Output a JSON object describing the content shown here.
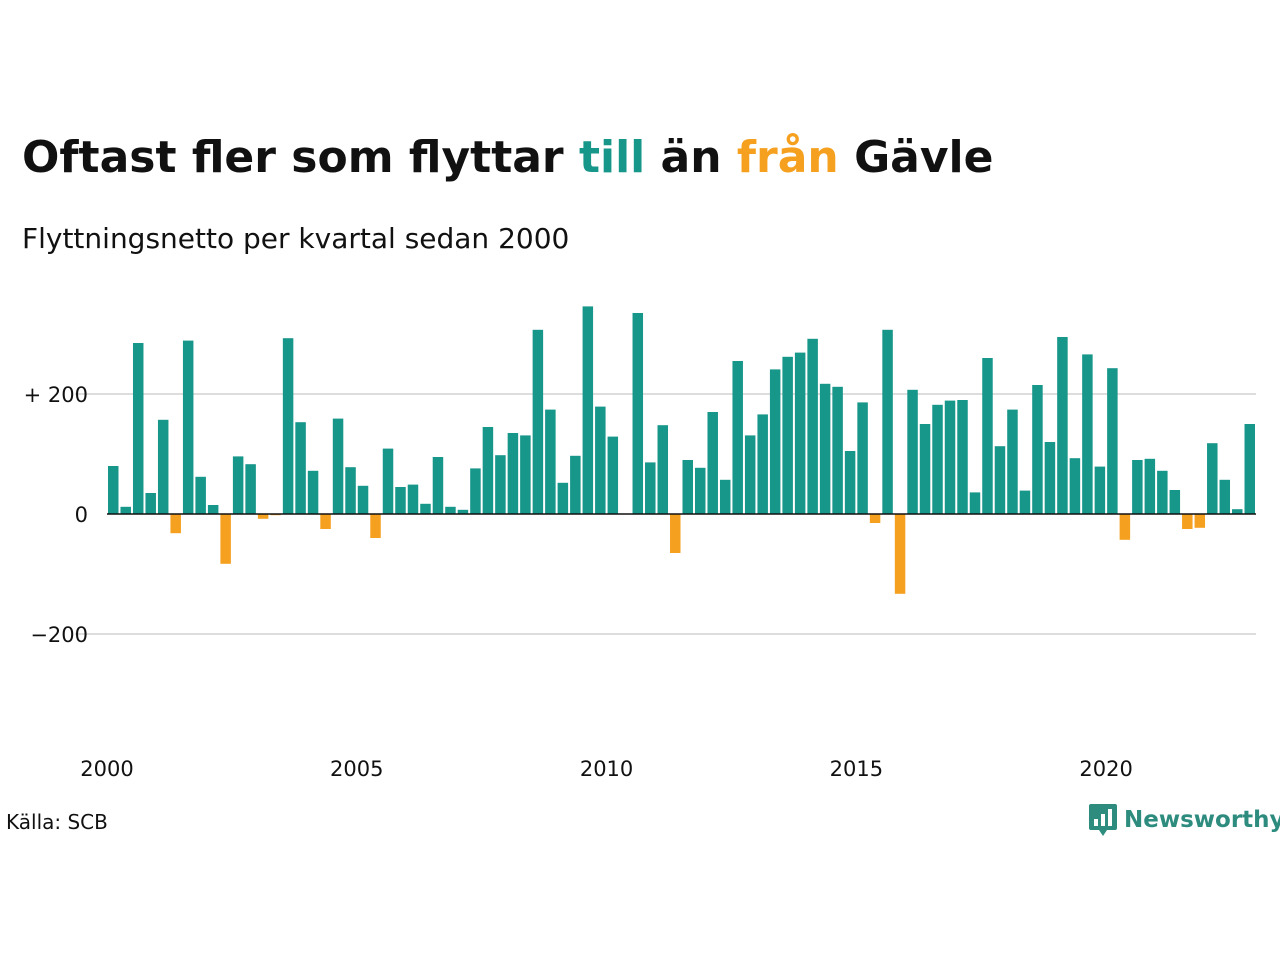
{
  "title": {
    "part1": "Oftast fler som flyttar ",
    "pos_word": "till",
    "part2": " än ",
    "neg_word": "från",
    "part3": " Gävle"
  },
  "subtitle": "Flyttningsnetto per kvartal sedan 2000",
  "source": "Källa: SCB",
  "brand": "Newsworthy",
  "colors": {
    "positive": "#17968a",
    "negative": "#f5a01f",
    "grid": "#dddddd",
    "zero": "#111111"
  },
  "chart_data": {
    "type": "bar",
    "start_year": 2000,
    "quarters_per_year": 4,
    "yticks": [
      {
        "value": 200,
        "label": "+ 200"
      },
      {
        "value": 0,
        "label": "0"
      },
      {
        "value": -200,
        "label": "−200"
      }
    ],
    "xticks": [
      "2000",
      "2005",
      "2010",
      "2015",
      "2020"
    ],
    "ylim": [
      -360,
      360
    ],
    "values": [
      80,
      12,
      285,
      35,
      157,
      -32,
      289,
      62,
      15,
      -83,
      96,
      83,
      -8,
      -2,
      293,
      153,
      72,
      -25,
      159,
      78,
      47,
      -40,
      109,
      45,
      49,
      17,
      95,
      12,
      7,
      76,
      145,
      98,
      135,
      131,
      307,
      174,
      52,
      97,
      346,
      179,
      129,
      0,
      335,
      86,
      148,
      -65,
      90,
      77,
      170,
      57,
      255,
      131,
      166,
      241,
      262,
      269,
      292,
      217,
      212,
      105,
      186,
      -15,
      307,
      -133,
      207,
      150,
      182,
      189,
      190,
      36,
      260,
      113,
      174,
      39,
      215,
      120,
      295,
      93,
      266,
      79,
      243,
      -43,
      90,
      92,
      72,
      40,
      -25,
      -23,
      118,
      57,
      8,
      150
    ]
  }
}
